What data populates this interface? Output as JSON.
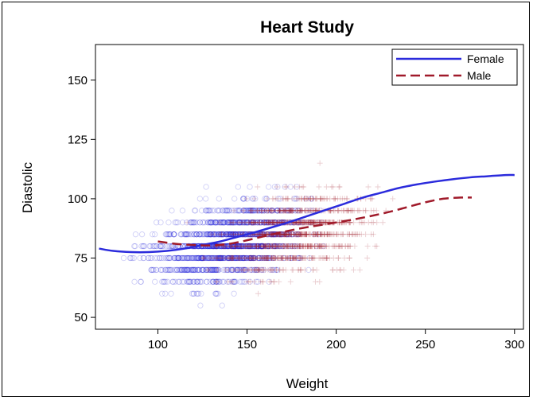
{
  "chart_data": {
    "type": "scatter",
    "title": "Heart Study",
    "xlabel": "Weight",
    "ylabel": "Diastolic",
    "xlim": [
      65,
      305
    ],
    "ylim": [
      45,
      165
    ],
    "x_ticks": [
      100,
      150,
      200,
      250,
      300
    ],
    "y_ticks": [
      50,
      75,
      100,
      125,
      150
    ],
    "grid": false,
    "legend_position": "top-right",
    "series": [
      {
        "name": "Female",
        "color": "#2b2bdc",
        "marker": "circle",
        "line_style": "solid",
        "fit_curve": {
          "x": [
            67,
            75,
            85,
            95,
            105,
            115,
            125,
            135,
            145,
            155,
            165,
            175,
            185,
            195,
            205,
            215,
            225,
            235,
            245,
            255,
            265,
            275,
            285,
            295,
            300
          ],
          "y": [
            79,
            78,
            77.5,
            77.5,
            78,
            79,
            80.5,
            82,
            84,
            86,
            88.2,
            90.5,
            93,
            95.5,
            98,
            100.5,
            102.5,
            104.5,
            106,
            107.2,
            108.2,
            109,
            109.5,
            110,
            110
          ]
        }
      },
      {
        "name": "Male",
        "color": "#a01a2a",
        "marker": "plus",
        "line_style": "dashed",
        "fit_curve": {
          "x": [
            100,
            110,
            120,
            130,
            140,
            150,
            160,
            170,
            180,
            190,
            200,
            210,
            220,
            230,
            240,
            250,
            260,
            270,
            276
          ],
          "y": [
            82,
            81,
            80.5,
            80.3,
            81,
            82.5,
            84.3,
            86,
            87.5,
            88.8,
            90,
            91.3,
            92.8,
            94.5,
            96.5,
            98.5,
            100,
            100.5,
            100.5
          ]
        }
      }
    ]
  }
}
